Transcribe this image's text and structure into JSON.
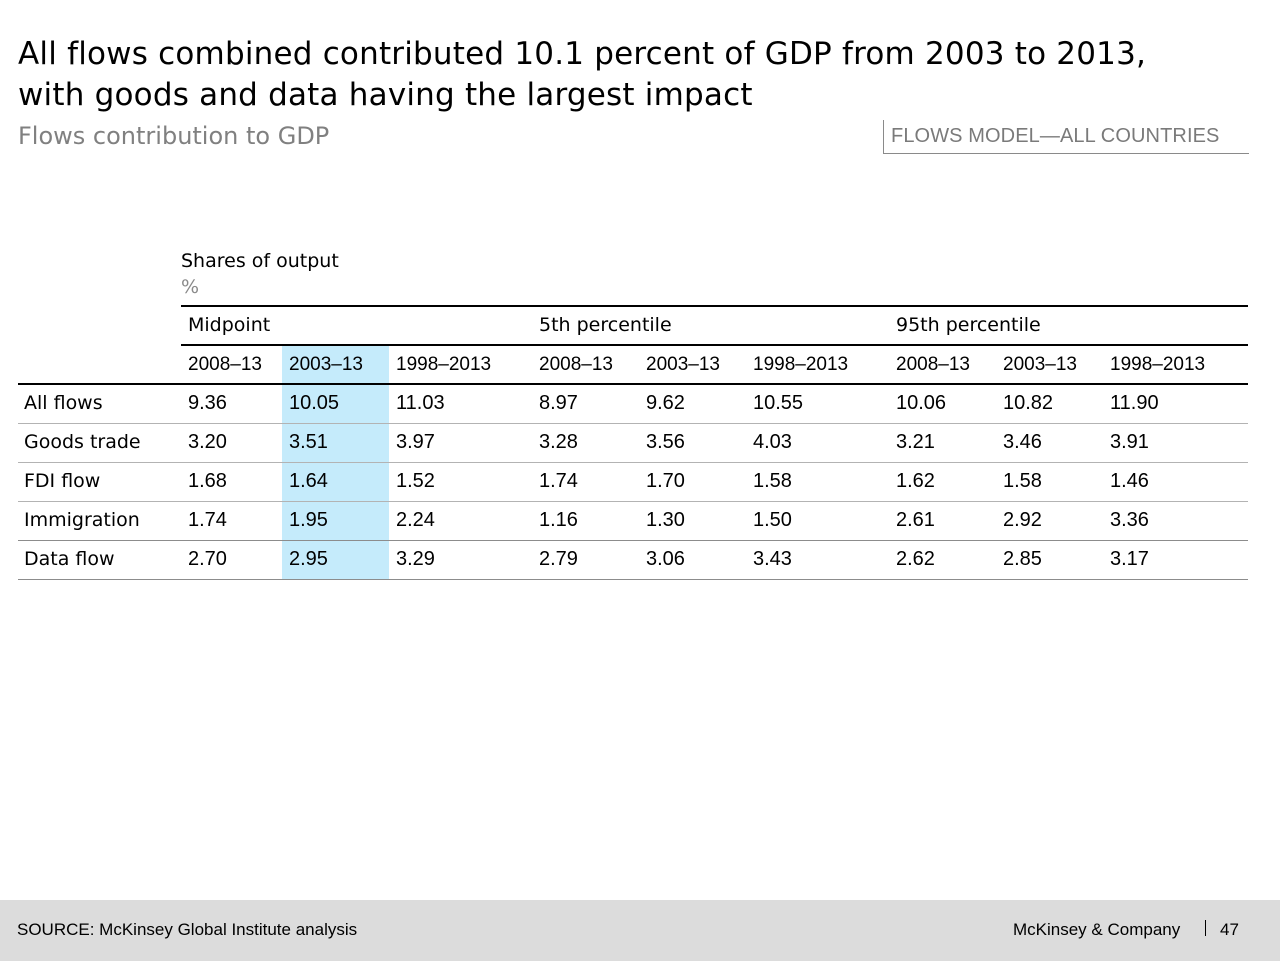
{
  "title_line1": "All flows combined contributed 10.1 percent of GDP from 2003 to 2013,",
  "title_line2": "with goods and data having the largest impact",
  "subtitle": "Flows contribution to GDP",
  "tag": "FLOWS MODEL—ALL COUNTRIES",
  "unit_label": "Shares of output",
  "unit_symbol": "%",
  "table": {
    "groups": [
      "Midpoint",
      "5th percentile",
      "95th percentile"
    ],
    "periods": [
      "2008–13",
      "2003–13",
      "1998–2013",
      "2008–13",
      "2003–13",
      "1998–2013",
      "2008–13",
      "2003–13",
      "1998–2013"
    ],
    "rows": [
      {
        "label": "All flows",
        "values": [
          "9.36",
          "10.05",
          "11.03",
          "8.97",
          "9.62",
          "10.55",
          "10.06",
          "10.82",
          "11.90"
        ]
      },
      {
        "label": "Goods trade",
        "values": [
          "3.20",
          "3.51",
          "3.97",
          "3.28",
          "3.56",
          "4.03",
          "3.21",
          "3.46",
          "3.91"
        ]
      },
      {
        "label": "FDI flow",
        "values": [
          "1.68",
          "1.64",
          "1.52",
          "1.74",
          "1.70",
          "1.58",
          "1.62",
          "1.58",
          "1.46"
        ]
      },
      {
        "label": "Immigration",
        "values": [
          "1.74",
          "1.95",
          "2.24",
          "1.16",
          "1.30",
          "1.50",
          "2.61",
          "2.92",
          "3.36"
        ]
      },
      {
        "label": "Data flow",
        "values": [
          "2.70",
          "2.95",
          "3.29",
          "2.79",
          "3.06",
          "3.43",
          "2.62",
          "2.85",
          "3.17"
        ]
      }
    ],
    "highlight_color": "#c5ebfb"
  },
  "footer": {
    "source": "SOURCE: McKinsey Global Institute analysis",
    "brand": "McKinsey & Company",
    "page": "47"
  }
}
